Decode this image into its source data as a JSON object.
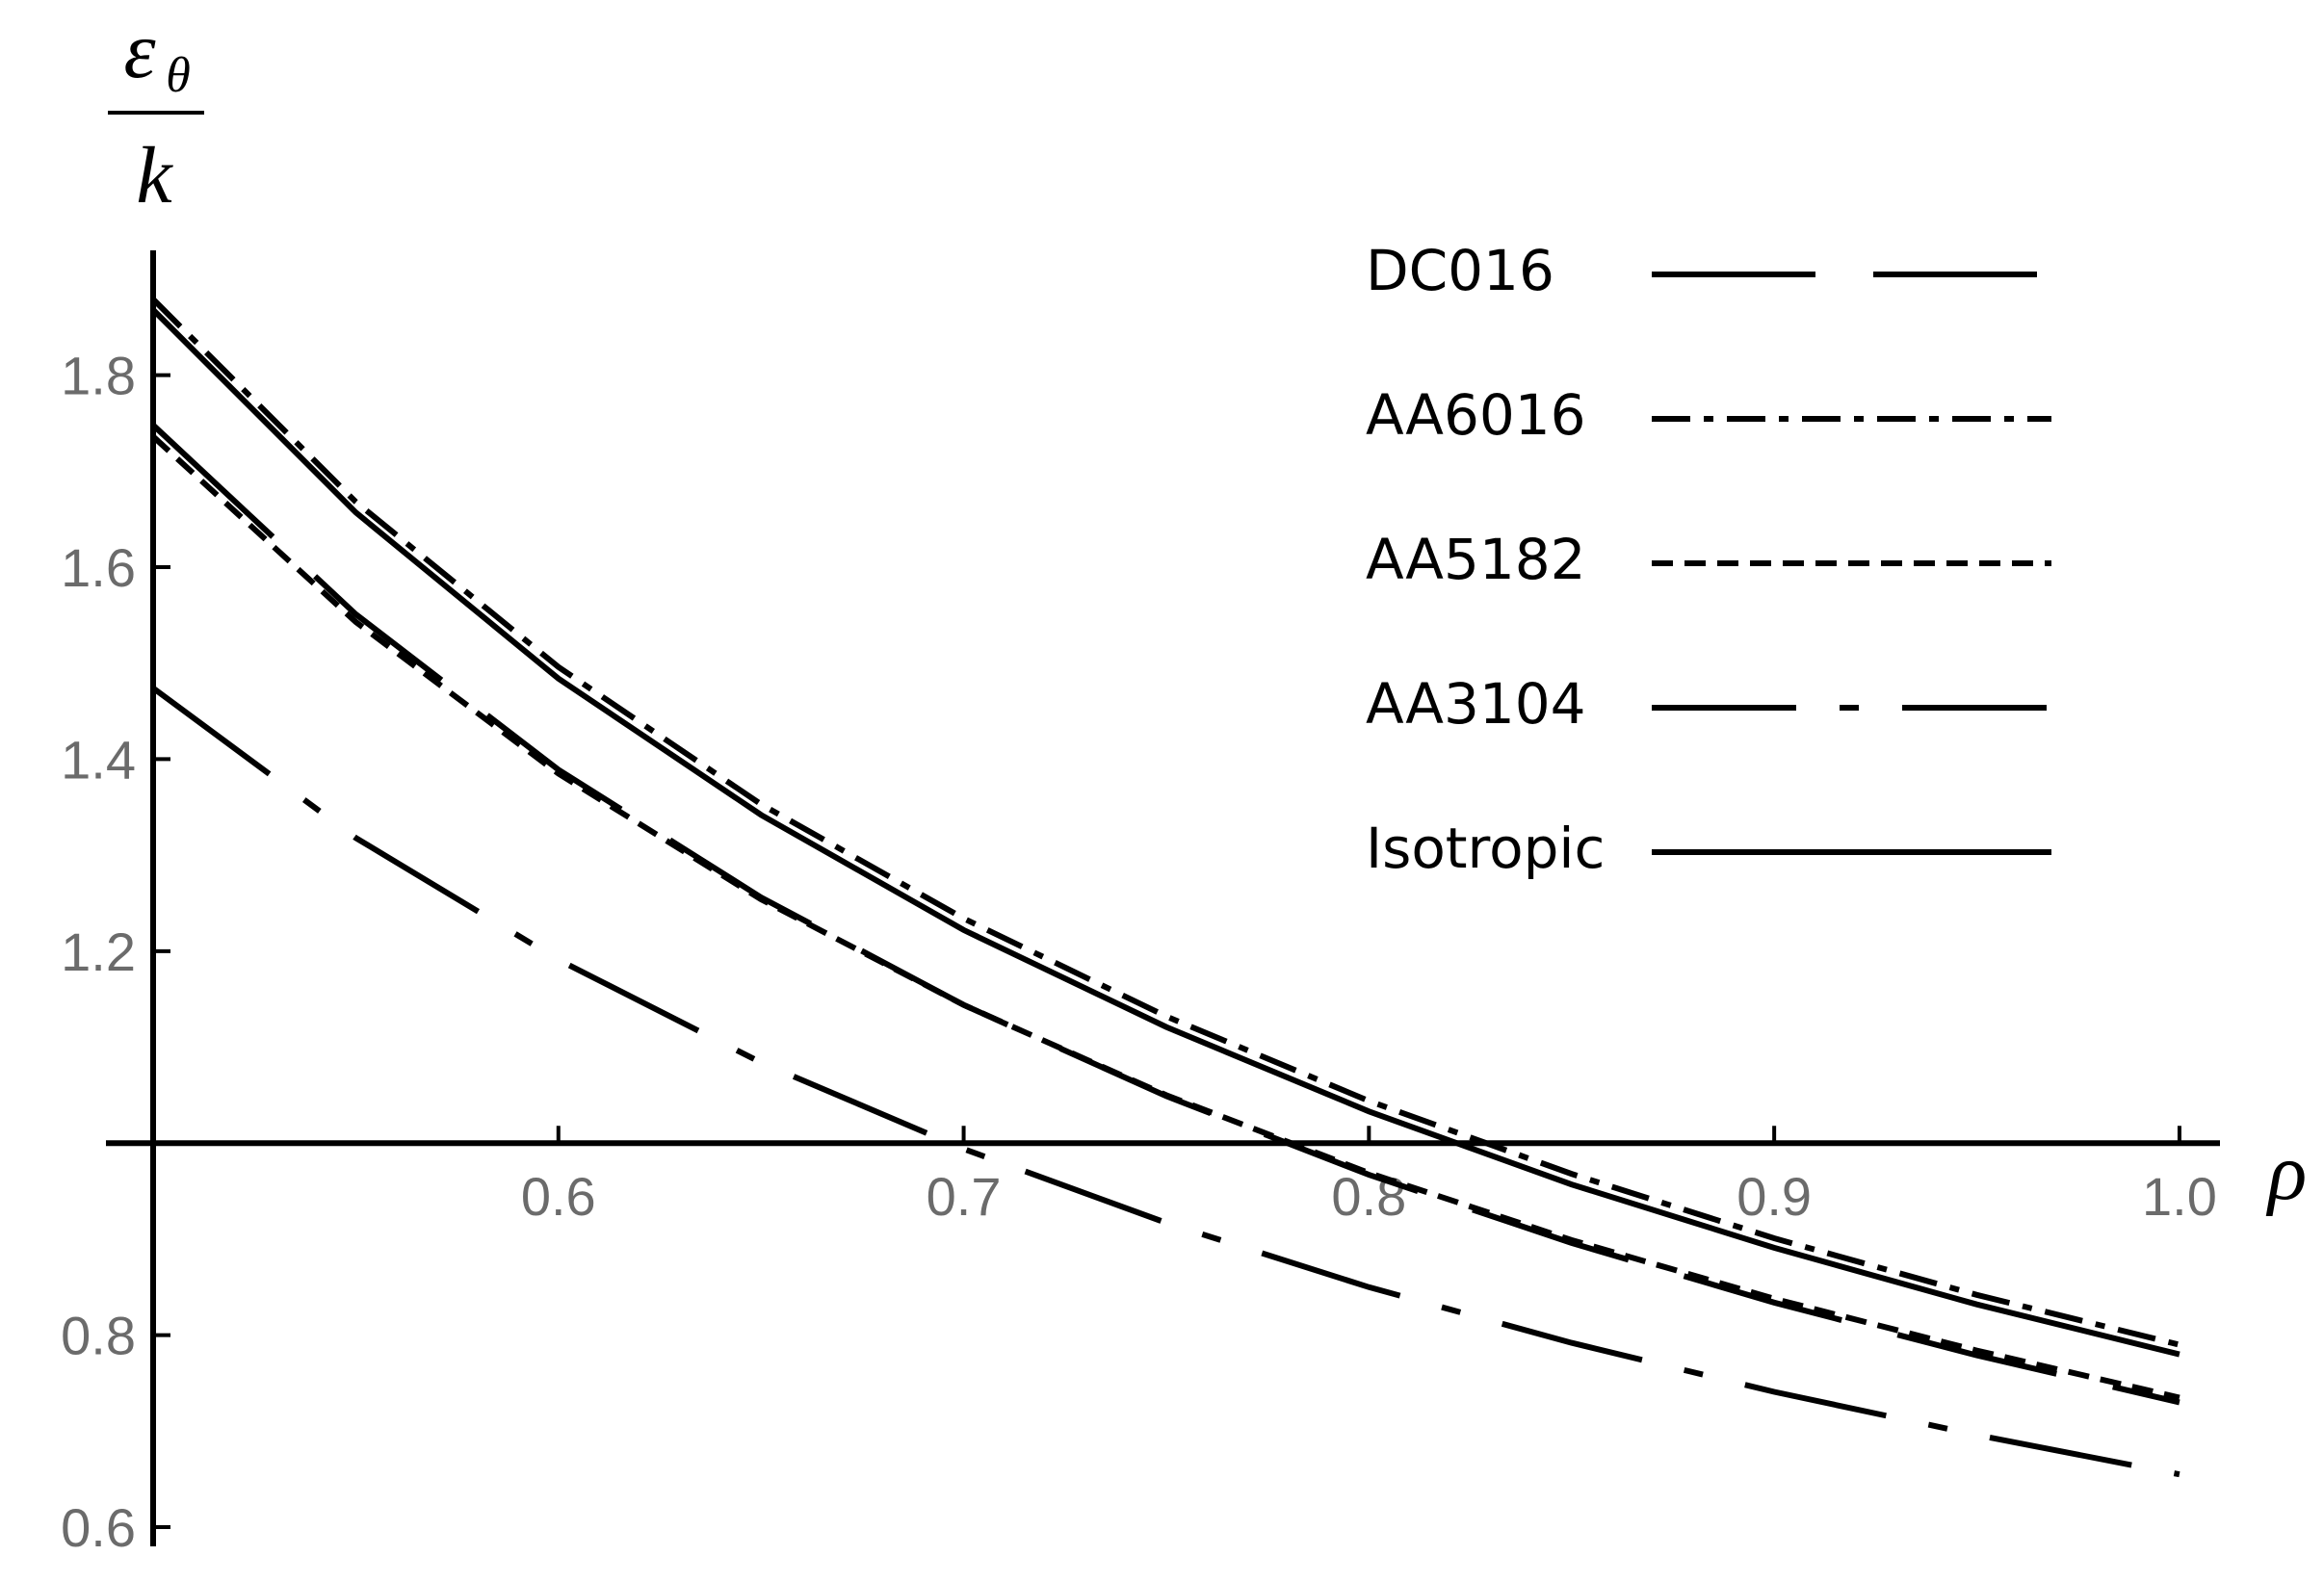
{
  "chart_data": {
    "type": "line",
    "xlabel": "ρ",
    "ylabel_numerator": "ε",
    "ylabel_subscript": "θ",
    "ylabel_denominator": "k",
    "x": [
      0.5,
      0.55,
      0.6,
      0.65,
      0.7,
      0.75,
      0.8,
      0.85,
      0.9,
      0.95,
      1.0
    ],
    "series": [
      {
        "name": "DC016",
        "color": "#000000",
        "style": "long-dash",
        "values": [
          1.748,
          1.551,
          1.389,
          1.256,
          1.144,
          1.049,
          0.967,
          0.896,
          0.834,
          0.779,
          0.73
        ]
      },
      {
        "name": "AA6016",
        "color": "#000000",
        "style": "dash-dot",
        "values": [
          1.879,
          1.668,
          1.496,
          1.353,
          1.234,
          1.132,
          1.044,
          0.968,
          0.901,
          0.842,
          0.79
        ]
      },
      {
        "name": "AA5182",
        "color": "#000000",
        "style": "short-dash",
        "values": [
          1.736,
          1.543,
          1.385,
          1.254,
          1.144,
          1.05,
          0.969,
          0.899,
          0.838,
          0.784,
          0.735
        ]
      },
      {
        "name": "AA3104",
        "color": "#000000",
        "style": "long-dash-dot",
        "values": [
          1.474,
          1.318,
          1.191,
          1.084,
          0.994,
          0.917,
          0.85,
          0.792,
          0.741,
          0.696,
          0.655
        ]
      },
      {
        "name": "Isotropic",
        "color": "#000000",
        "style": "solid",
        "values": [
          1.868,
          1.657,
          1.484,
          1.342,
          1.222,
          1.121,
          1.033,
          0.957,
          0.891,
          0.832,
          0.78
        ]
      }
    ],
    "xlim": [
      0.5,
      1.01
    ],
    "ylim": [
      0.58,
      1.93
    ],
    "origin": [
      0.5,
      1.0
    ],
    "xticks": [
      0.6,
      0.7,
      0.8,
      0.9,
      {
        "value": 1.0,
        "label": "1.0"
      }
    ],
    "yticks": [
      0.6,
      0.8,
      1.2,
      1.4,
      1.6,
      1.8
    ],
    "legend": "upper right",
    "grid": false
  }
}
